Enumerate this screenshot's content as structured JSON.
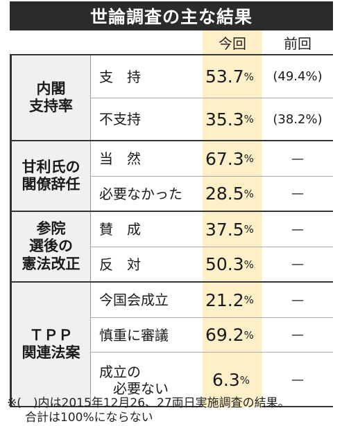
{
  "title": "世論調査の主な結果",
  "columns": {
    "current": "今回",
    "previous": "前回"
  },
  "groups": [
    {
      "label": "内閣\n支持率",
      "rows": [
        {
          "label": "支　持",
          "value": "53.7",
          "unit": "%",
          "previous": "(49.4%)"
        },
        {
          "label": "不支持",
          "value": "35.3",
          "unit": "%",
          "previous": "(38.2%)"
        }
      ]
    },
    {
      "label": "甘利氏の\n閣僚辞任",
      "rows": [
        {
          "label": "当　然",
          "value": "67.3",
          "unit": "%",
          "previous": "—"
        },
        {
          "label": "必要なかった",
          "value": "28.5",
          "unit": "%",
          "previous": "—"
        }
      ]
    },
    {
      "label": "参院\n選後の\n憲法改正",
      "rows": [
        {
          "label": "賛　成",
          "value": "37.5",
          "unit": "%",
          "previous": "—"
        },
        {
          "label": "反　対",
          "value": "50.3",
          "unit": "%",
          "previous": "—"
        }
      ]
    },
    {
      "label": "ＴＰＰ\n関連法案",
      "rows": [
        {
          "label": "今国会成立",
          "value": "21.2",
          "unit": "%",
          "previous": "—"
        },
        {
          "label": "慎重に審議",
          "value": "69.2",
          "unit": "%",
          "previous": "—"
        },
        {
          "label": "成立の\n　必要ない",
          "value": "6.3",
          "unit": "%",
          "previous": "—"
        }
      ]
    }
  ],
  "footnote": {
    "line1": "※(　)内は2015年12月26、27両日実施調査の結果。",
    "line2": "合計は100%にならない"
  }
}
